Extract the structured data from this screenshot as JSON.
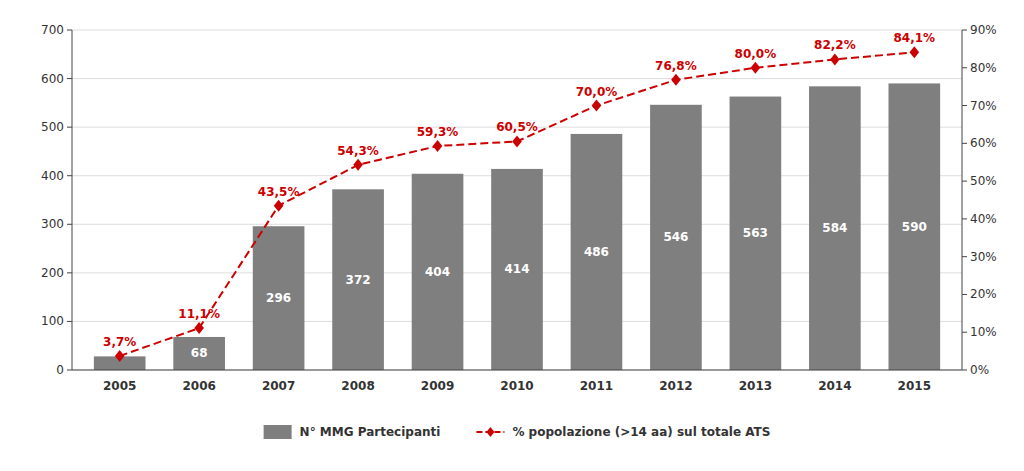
{
  "chart_data": {
    "type": "bar",
    "categories": [
      "2005",
      "2006",
      "2007",
      "2008",
      "2009",
      "2010",
      "2011",
      "2012",
      "2013",
      "2014",
      "2015"
    ],
    "series": [
      {
        "name": "N° MMG Partecipanti",
        "type": "bar",
        "color": "#7f7f7f",
        "values": [
          28,
          68,
          296,
          372,
          404,
          414,
          486,
          546,
          563,
          584,
          590
        ],
        "value_labels": [
          null,
          "68",
          "296",
          "372",
          "404",
          "414",
          "486",
          "546",
          "563",
          "584",
          "590"
        ]
      },
      {
        "name": "% popolazione (>14 aa) sul totale ATS",
        "type": "line",
        "axis": "y2",
        "color": "#cc0000",
        "marker": "diamond",
        "line_style": "dashed",
        "values": [
          3.7,
          11.1,
          43.5,
          54.3,
          59.3,
          60.5,
          70.0,
          76.8,
          80.0,
          82.2,
          84.1
        ],
        "value_labels": [
          "3,7%",
          "11,1%",
          "43,5%",
          "54,3%",
          "59,3%",
          "60,5%",
          "70,0%",
          "76,8%",
          "80,0%",
          "82,2%",
          "84,1%"
        ]
      }
    ],
    "ylim": [
      0,
      700
    ],
    "yticks": [
      0,
      100,
      200,
      300,
      400,
      500,
      600,
      700
    ],
    "y2lim": [
      0,
      90
    ],
    "y2ticks": [
      {
        "value": 0,
        "label": "0%"
      },
      {
        "value": 10,
        "label": "10%"
      },
      {
        "value": 20,
        "label": "20%"
      },
      {
        "value": 30,
        "label": "30%"
      },
      {
        "value": 40,
        "label": "40%"
      },
      {
        "value": 50,
        "label": "50%"
      },
      {
        "value": 60,
        "label": "60%"
      },
      {
        "value": 70,
        "label": "70%"
      },
      {
        "value": 80,
        "label": "80%"
      },
      {
        "value": 90,
        "label": "90%"
      }
    ],
    "grid": true,
    "data_labels": true,
    "legend": "bottom"
  }
}
